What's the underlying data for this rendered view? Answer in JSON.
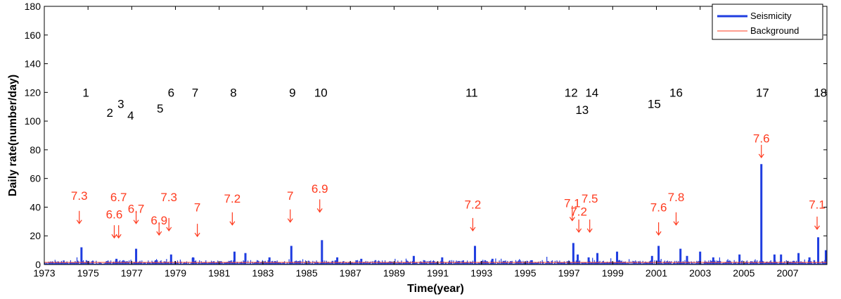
{
  "chart_data": {
    "type": "line",
    "title": "",
    "xlabel": "Time(year)",
    "ylabel": "Daily rate(number/day)",
    "xlim": [
      1973,
      2008.8
    ],
    "ylim": [
      0,
      180
    ],
    "x_ticks": [
      "1973",
      "1975",
      "1977",
      "1979",
      "1981",
      "1983",
      "1985",
      "1987",
      "1989",
      "1991",
      "1993",
      "1995",
      "1997",
      "1999",
      "2001",
      "2003",
      "2005",
      "2007"
    ],
    "y_ticks": [
      "0",
      "20",
      "40",
      "60",
      "80",
      "100",
      "120",
      "140",
      "160",
      "180"
    ],
    "grid": false,
    "legend_position": "top-right",
    "colors": {
      "seismicity": "#1f3de0",
      "background": "#ff3b1f",
      "annotation": "#ff3b1f"
    },
    "series": [
      {
        "name": "Seismicity",
        "color": "#1f3de0",
        "peaks": [
          [
            1974.7,
            12
          ],
          [
            1976.3,
            4
          ],
          [
            1977.2,
            11
          ],
          [
            1978.1,
            3
          ],
          [
            1978.8,
            7
          ],
          [
            1979.8,
            5
          ],
          [
            1981.7,
            9
          ],
          [
            1982.2,
            8
          ],
          [
            1983.3,
            5
          ],
          [
            1984.3,
            13
          ],
          [
            1985.7,
            17
          ],
          [
            1986.4,
            5
          ],
          [
            1987.5,
            4
          ],
          [
            1989.9,
            6
          ],
          [
            1991.2,
            5
          ],
          [
            1992.7,
            13
          ],
          [
            1993.5,
            4
          ],
          [
            1995.3,
            3
          ],
          [
            1997.2,
            15
          ],
          [
            1997.4,
            7
          ],
          [
            1997.9,
            5
          ],
          [
            1998.3,
            8
          ],
          [
            1999.2,
            9
          ],
          [
            2000.8,
            6
          ],
          [
            2001.1,
            13
          ],
          [
            2002.1,
            11
          ],
          [
            2002.4,
            6
          ],
          [
            2003.0,
            9
          ],
          [
            2003.6,
            5
          ],
          [
            2004.8,
            7
          ],
          [
            2005.8,
            70
          ],
          [
            2006.4,
            7
          ],
          [
            2006.7,
            7
          ],
          [
            2007.5,
            8
          ],
          [
            2008.0,
            5
          ],
          [
            2008.4,
            19
          ],
          [
            2008.75,
            10
          ]
        ]
      },
      {
        "name": "Background",
        "color": "#ff3b1f",
        "value": 1.5
      }
    ],
    "event_numbers": [
      {
        "label": "1",
        "x": 1974.9,
        "y": 120
      },
      {
        "label": "2",
        "x": 1976.0,
        "y": 106
      },
      {
        "label": "3",
        "x": 1976.5,
        "y": 112
      },
      {
        "label": "4",
        "x": 1976.95,
        "y": 104
      },
      {
        "label": "5",
        "x": 1978.3,
        "y": 109
      },
      {
        "label": "6",
        "x": 1978.8,
        "y": 120
      },
      {
        "label": "7",
        "x": 1979.9,
        "y": 120
      },
      {
        "label": "8",
        "x": 1981.65,
        "y": 120
      },
      {
        "label": "9",
        "x": 1984.35,
        "y": 120
      },
      {
        "label": "10",
        "x": 1985.65,
        "y": 120
      },
      {
        "label": "11",
        "x": 1992.55,
        "y": 120
      },
      {
        "label": "12",
        "x": 1997.1,
        "y": 120
      },
      {
        "label": "13",
        "x": 1997.6,
        "y": 108
      },
      {
        "label": "14",
        "x": 1998.05,
        "y": 120
      },
      {
        "label": "15",
        "x": 2000.9,
        "y": 112
      },
      {
        "label": "16",
        "x": 2001.9,
        "y": 120
      },
      {
        "label": "17",
        "x": 2005.85,
        "y": 120
      },
      {
        "label": "18",
        "x": 2008.5,
        "y": 120
      }
    ],
    "magnitudes": [
      {
        "label": "7.3",
        "x": 1974.6,
        "y_text": 48,
        "y_arrow": 33
      },
      {
        "label": "6.6",
        "x": 1976.2,
        "y_text": 35,
        "y_arrow": 23
      },
      {
        "label": "6.7",
        "x": 1976.4,
        "y_text": 47,
        "y_arrow": 23
      },
      {
        "label": "6.7",
        "x": 1977.2,
        "y_text": 39,
        "y_arrow": 33
      },
      {
        "label": "6.9",
        "x": 1978.25,
        "y_text": 31,
        "y_arrow": 25
      },
      {
        "label": "7.3",
        "x": 1978.7,
        "y_text": 47,
        "y_arrow": 28
      },
      {
        "label": "7",
        "x": 1980.0,
        "y_text": 40,
        "y_arrow": 24
      },
      {
        "label": "7.2",
        "x": 1981.6,
        "y_text": 46,
        "y_arrow": 32
      },
      {
        "label": "7",
        "x": 1984.25,
        "y_text": 48,
        "y_arrow": 34
      },
      {
        "label": "6.9",
        "x": 1985.6,
        "y_text": 53,
        "y_arrow": 41
      },
      {
        "label": "7.2",
        "x": 1992.6,
        "y_text": 42,
        "y_arrow": 28
      },
      {
        "label": "7.1",
        "x": 1997.15,
        "y_text": 43,
        "y_arrow": 35
      },
      {
        "label": "7.2",
        "x": 1997.45,
        "y_text": 37,
        "y_arrow": 27
      },
      {
        "label": "7.5",
        "x": 1997.95,
        "y_text": 46,
        "y_arrow": 27
      },
      {
        "label": "7.6",
        "x": 2001.1,
        "y_text": 40,
        "y_arrow": 25
      },
      {
        "label": "7.8",
        "x": 2001.9,
        "y_text": 47,
        "y_arrow": 32
      },
      {
        "label": "7.6",
        "x": 2005.8,
        "y_text": 88,
        "y_arrow": 79
      },
      {
        "label": "7.1",
        "x": 2008.35,
        "y_text": 42,
        "y_arrow": 29
      }
    ]
  }
}
